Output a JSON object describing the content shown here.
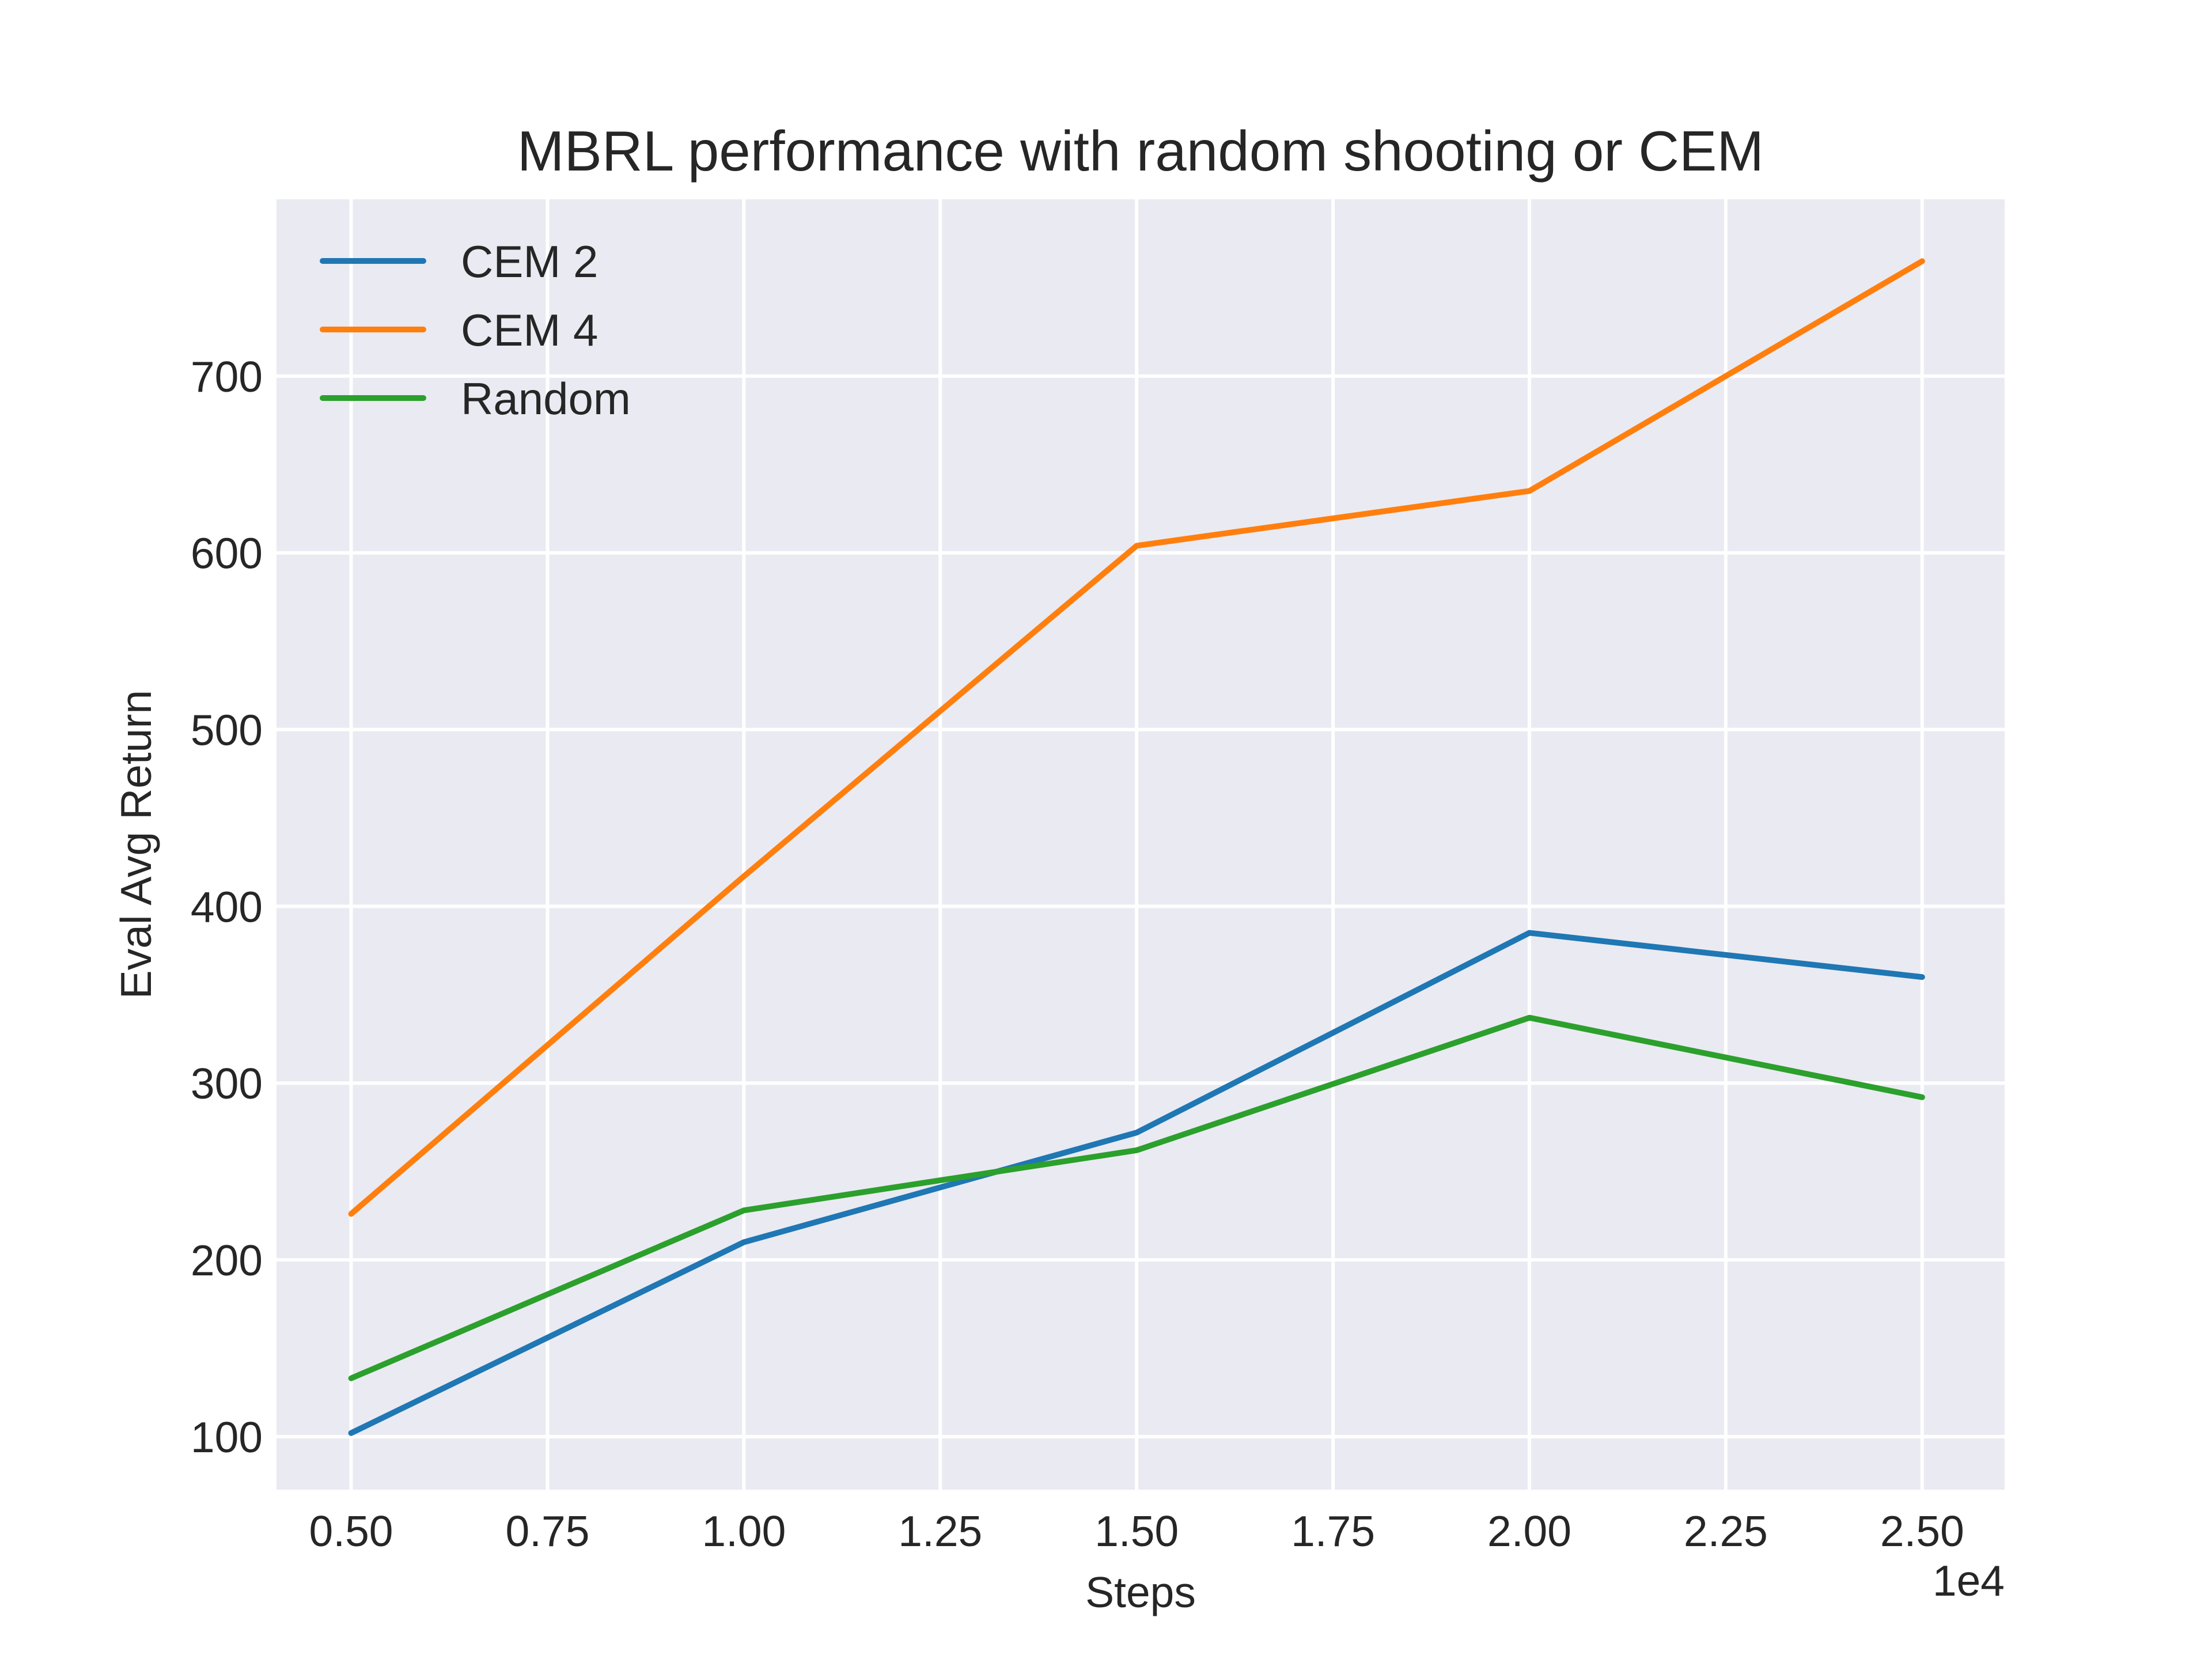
{
  "chart_data": {
    "type": "line",
    "title": "MBRL performance with random shooting or CEM",
    "xlabel": "Steps",
    "ylabel": "Eval Avg Return",
    "x_offset_label": "1e4",
    "x": [
      5000,
      10000,
      15000,
      20000,
      25000
    ],
    "xlim": [
      4050,
      26050
    ],
    "ylim": [
      70,
      800
    ],
    "xticks": [
      5000,
      7500,
      10000,
      12500,
      15000,
      17500,
      20000,
      22500,
      25000
    ],
    "xtick_labels": [
      "0.50",
      "0.75",
      "1.00",
      "1.25",
      "1.50",
      "1.75",
      "2.00",
      "2.25",
      "2.50"
    ],
    "yticks": [
      100,
      200,
      300,
      400,
      500,
      600,
      700
    ],
    "ytick_labels": [
      "100",
      "200",
      "300",
      "400",
      "500",
      "600",
      "700"
    ],
    "grid": true,
    "legend_position": "top-left",
    "series": [
      {
        "name": "CEM 2",
        "color": "#1f77b4",
        "values": [
          102,
          210,
          272,
          385,
          360
        ]
      },
      {
        "name": "CEM 4",
        "color": "#ff7f0e",
        "values": [
          226,
          417,
          604,
          635,
          765
        ]
      },
      {
        "name": "Random",
        "color": "#2ca02c",
        "values": [
          133,
          228,
          262,
          337,
          292
        ]
      }
    ]
  },
  "colors": {
    "plot_background": "#eaeaf2",
    "grid": "#ffffff",
    "text": "#262626"
  }
}
